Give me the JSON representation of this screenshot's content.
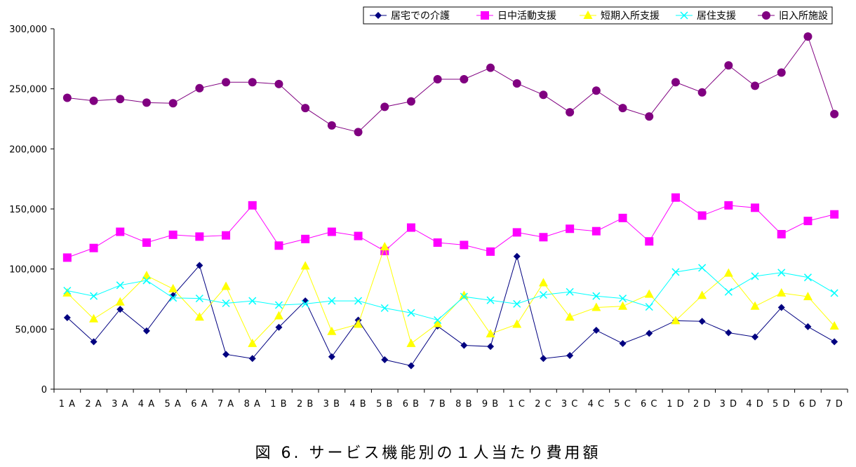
{
  "caption": "図 6. サービス機能別の１人当たり費用額",
  "chart_data": {
    "type": "line",
    "title": "",
    "xlabel": "",
    "ylabel": "",
    "ylim": [
      0,
      300000
    ],
    "y_ticks": [
      0,
      50000,
      100000,
      150000,
      200000,
      250000,
      300000
    ],
    "y_tick_labels": [
      "0",
      "50,000",
      "100,000",
      "150,000",
      "200,000",
      "250,000",
      "300,000"
    ],
    "grid": false,
    "legend_position": "top-right",
    "categories": [
      "1 A",
      "2 A",
      "3 A",
      "4 A",
      "5 A",
      "6 A",
      "7 A",
      "8 A",
      "1 B",
      "2 B",
      "3 B",
      "4 B",
      "5 B",
      "6 B",
      "7 B",
      "8 B",
      "9 B",
      "1 C",
      "2 C",
      "3 C",
      "4 C",
      "5 C",
      "6 C",
      "1 D",
      "2 D",
      "3 D",
      "4 D",
      "5 D",
      "6 D",
      "7 D"
    ],
    "series": [
      {
        "name": "居宅での介護",
        "color": "#000080",
        "marker": "diamond",
        "values": [
          59500,
          39500,
          66500,
          48500,
          78000,
          103000,
          29000,
          25500,
          51500,
          73500,
          27000,
          57500,
          24500,
          19500,
          52500,
          36500,
          35500,
          110500,
          25500,
          28000,
          49000,
          38000,
          46500,
          57000,
          56500,
          47000,
          43500,
          68000,
          52000,
          39500
        ]
      },
      {
        "name": "日中活動支援",
        "color": "#ff00ff",
        "marker": "square",
        "values": [
          109500,
          117500,
          131000,
          122000,
          128500,
          127000,
          128000,
          153000,
          119500,
          125000,
          131000,
          127500,
          115000,
          134500,
          122000,
          120000,
          114500,
          130500,
          126500,
          133500,
          131500,
          142500,
          123000,
          159500,
          144500,
          153000,
          151000,
          129000,
          140000,
          145500
        ]
      },
      {
        "name": "短期入所支援",
        "color": "#ffff00",
        "marker": "triangle",
        "values": [
          80000,
          58500,
          72500,
          94500,
          83500,
          60000,
          85500,
          38000,
          61000,
          102500,
          48000,
          54000,
          118500,
          38000,
          54500,
          78000,
          46000,
          54000,
          88500,
          60000,
          68000,
          69000,
          79000,
          57000,
          78000,
          96500,
          69000,
          80000,
          77000,
          52500
        ]
      },
      {
        "name": "居住支援",
        "color": "#00ffff",
        "marker": "x",
        "values": [
          82000,
          77500,
          86500,
          90500,
          76000,
          75500,
          71500,
          73500,
          70000,
          71000,
          73500,
          73500,
          67500,
          63500,
          57500,
          77000,
          74000,
          71000,
          78500,
          81000,
          77500,
          75500,
          68500,
          97500,
          101000,
          81000,
          94000,
          97000,
          93000,
          80000
        ]
      },
      {
        "name": "旧入所施設",
        "color": "#800080",
        "marker": "circle",
        "values": [
          242500,
          240000,
          241500,
          238500,
          238000,
          250500,
          255500,
          255500,
          254000,
          234000,
          219500,
          214000,
          235000,
          239500,
          258000,
          258000,
          267500,
          254500,
          245000,
          230500,
          248500,
          234000,
          227000,
          255500,
          247000,
          269500,
          252500,
          263500,
          293500,
          229000
        ]
      }
    ]
  }
}
